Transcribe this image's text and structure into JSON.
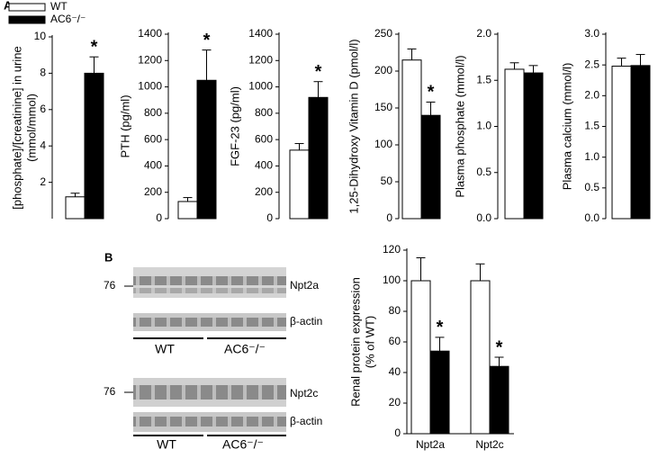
{
  "panels": {
    "a": "A",
    "b": "B"
  },
  "blots": [
    {
      "marker": "76",
      "target": "Npt2a",
      "control": "β-actin",
      "groups": [
        "WT",
        "AC6⁻/⁻"
      ]
    },
    {
      "marker": "76",
      "target": "Npt2c",
      "control": "β-actin",
      "groups": [
        "WT",
        "AC6⁻/⁻"
      ]
    }
  ],
  "chart_data": [
    {
      "type": "bar",
      "ylabel": [
        "[phosphate]/[creatinine] in urine",
        "(mmol/mmol)"
      ],
      "categories": [
        null
      ],
      "ylim": [
        0,
        10
      ],
      "yticks": [
        2,
        4,
        6,
        8,
        10
      ],
      "series": [
        {
          "name": "WT",
          "color": "#ffffff",
          "values": [
            1.2
          ],
          "errors": [
            0.2
          ]
        },
        {
          "name": "AC6⁻/⁻",
          "color": "#000000",
          "values": [
            8.0
          ],
          "errors": [
            0.9
          ]
        }
      ],
      "annotations": [
        "*"
      ]
    },
    {
      "type": "bar",
      "ylabel": [
        "PTH (pg/ml)"
      ],
      "categories": [
        null
      ],
      "ylim": [
        0,
        1400
      ],
      "yticks": [
        0,
        200,
        400,
        600,
        800,
        1000,
        1200,
        1400
      ],
      "series": [
        {
          "color": "#ffffff",
          "values": [
            130
          ],
          "errors": [
            30
          ]
        },
        {
          "color": "#000000",
          "values": [
            1050
          ],
          "errors": [
            230
          ]
        }
      ],
      "annotations": [
        "*"
      ]
    },
    {
      "type": "bar",
      "ylabel": [
        "FGF-23 (pg/ml)"
      ],
      "categories": [
        null
      ],
      "ylim": [
        0,
        1400
      ],
      "yticks": [
        0,
        200,
        400,
        600,
        800,
        1000,
        1200,
        1400
      ],
      "series": [
        {
          "color": "#ffffff",
          "values": [
            520
          ],
          "errors": [
            50
          ]
        },
        {
          "color": "#000000",
          "values": [
            920
          ],
          "errors": [
            120
          ]
        }
      ],
      "annotations": [
        "*"
      ]
    },
    {
      "type": "bar",
      "ylabel": [
        "1,25-Dihydroxy Vitamin D (pmol/l)"
      ],
      "categories": [
        null
      ],
      "ylim": [
        0,
        250
      ],
      "yticks": [
        0,
        50,
        100,
        150,
        200,
        250
      ],
      "series": [
        {
          "color": "#ffffff",
          "values": [
            215
          ],
          "errors": [
            15
          ]
        },
        {
          "color": "#000000",
          "values": [
            140
          ],
          "errors": [
            18
          ]
        }
      ],
      "annotations": [
        "*"
      ]
    },
    {
      "type": "bar",
      "ylabel": [
        "Plasma phosphate (mmol/l)"
      ],
      "categories": [
        null
      ],
      "ylim": [
        0,
        2
      ],
      "yticks": [
        {
          "value": 0,
          "label": "0.0"
        },
        {
          "value": 0.5,
          "label": "0.5"
        },
        {
          "value": 1,
          "label": "1.0"
        },
        {
          "value": 1.5,
          "label": "1.5"
        },
        {
          "value": 2,
          "label": "2.0"
        }
      ],
      "series": [
        {
          "color": "#ffffff",
          "values": [
            1.62
          ],
          "errors": [
            0.07
          ]
        },
        {
          "color": "#000000",
          "values": [
            1.58
          ],
          "errors": [
            0.08
          ]
        }
      ]
    },
    {
      "type": "bar",
      "ylabel": [
        "Plasma calcium (mmol/l)"
      ],
      "categories": [
        null
      ],
      "ylim": [
        0,
        3
      ],
      "yticks": [
        {
          "value": 0,
          "label": "0.0"
        },
        {
          "value": 0.5,
          "label": "0.5"
        },
        {
          "value": 1,
          "label": "1.0"
        },
        {
          "value": 1.5,
          "label": "1.5"
        },
        {
          "value": 2,
          "label": "2.0"
        },
        {
          "value": 2.5,
          "label": "2.5"
        },
        {
          "value": 3,
          "label": "3.0"
        }
      ],
      "series": [
        {
          "color": "#ffffff",
          "values": [
            2.48
          ],
          "errors": [
            0.13
          ]
        },
        {
          "color": "#000000",
          "values": [
            2.49
          ],
          "errors": [
            0.18
          ]
        }
      ]
    },
    {
      "type": "bar",
      "ylabel": [
        "Renal protein expression",
        "(% of WT)"
      ],
      "categories": [
        "Npt2a",
        "Npt2c"
      ],
      "ylim": [
        0,
        120
      ],
      "yticks": [
        0,
        20,
        40,
        60,
        80,
        100,
        120
      ],
      "series": [
        {
          "color": "#ffffff",
          "values": [
            100,
            100
          ],
          "errors": [
            15,
            11
          ]
        },
        {
          "color": "#000000",
          "values": [
            54,
            44
          ],
          "errors": [
            9,
            6
          ]
        }
      ],
      "annotations": [
        "*",
        "*"
      ]
    }
  ]
}
